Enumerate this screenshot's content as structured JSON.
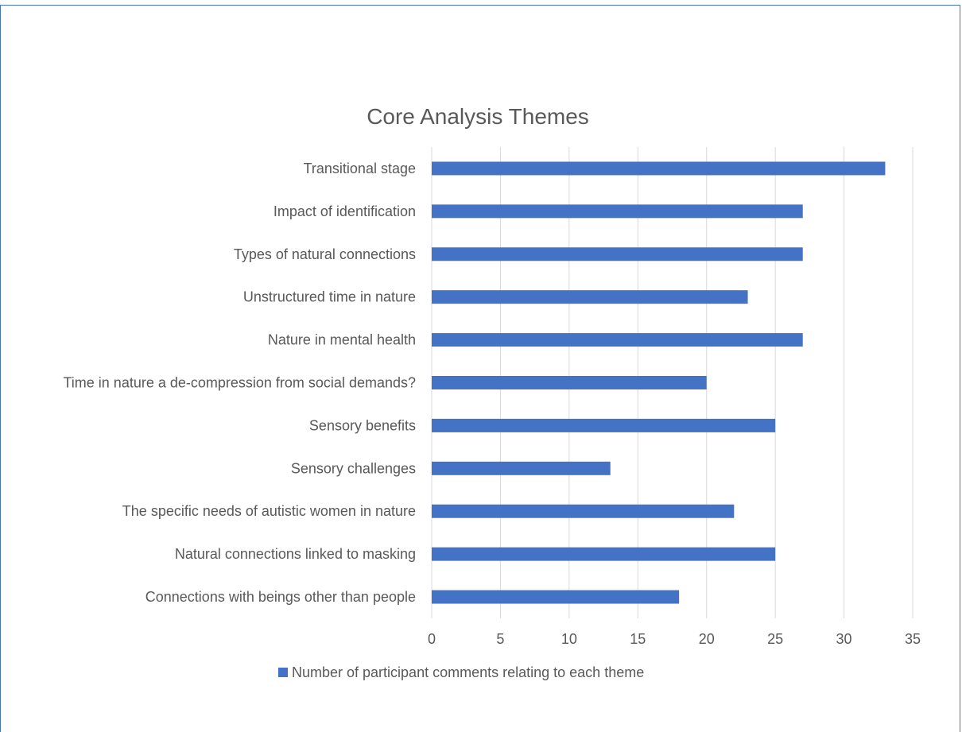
{
  "chart_data": {
    "type": "bar",
    "orientation": "horizontal",
    "title": "Core Analysis Themes",
    "xlabel": "",
    "ylabel": "",
    "xlim": [
      0,
      35
    ],
    "x_ticks": [
      "0",
      "5",
      "10",
      "15",
      "20",
      "25",
      "30",
      "35"
    ],
    "grid": "vertical",
    "legend_position": "bottom",
    "categories": [
      "Transitional stage",
      "Impact of identification",
      "Types of natural connections",
      "Unstructured time in nature",
      "Nature in mental health",
      "Time in nature a de-compression from social demands?",
      "Sensory benefits",
      "Sensory challenges",
      "The specific needs of autistic women in nature",
      "Natural connections linked to masking",
      "Connections with beings other than people"
    ],
    "series": [
      {
        "name": "Number of participant comments relating to each theme",
        "color": "#4472c4",
        "values": [
          33,
          27,
          27,
          23,
          27,
          20,
          25,
          13,
          22,
          25,
          18
        ]
      }
    ]
  }
}
